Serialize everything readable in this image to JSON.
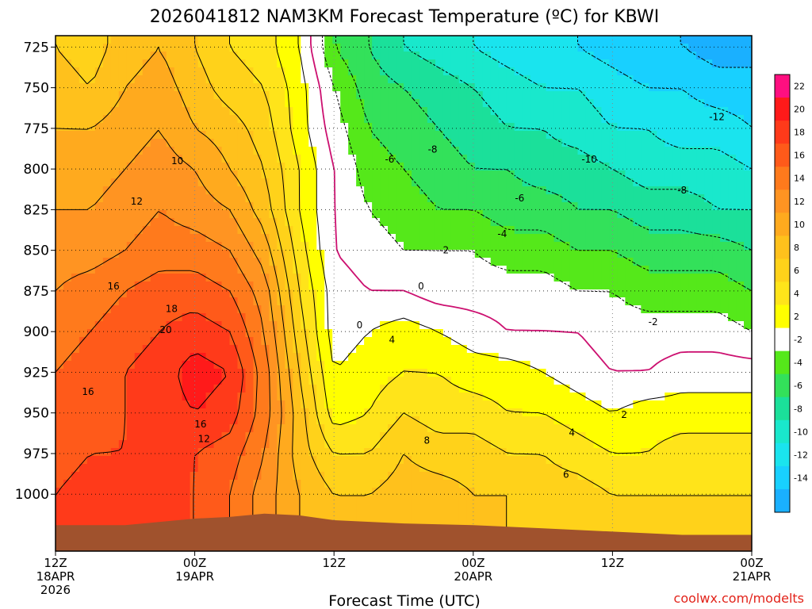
{
  "chart_data": {
    "type": "heatmap",
    "title": "2026041812 NAM3KM Forecast Temperature (ºC) for KBWI",
    "xlabel": "Forecast Time (UTC)",
    "ylabel": "",
    "credit": "coolwx.com/modelts",
    "y_axis": {
      "scale": "pressure (mb), inverted",
      "ylim": [
        1035,
        718
      ],
      "ticks": [
        "725",
        "750",
        "775",
        "800",
        "825",
        "850",
        "875",
        "900",
        "925",
        "950",
        "975",
        "1000"
      ]
    },
    "x_axis": {
      "xlim_hours": [
        0,
        60
      ],
      "ticks": [
        {
          "hour": 0,
          "lines": [
            "12Z",
            "18APR",
            "2026"
          ]
        },
        {
          "hour": 12,
          "lines": [
            "00Z",
            "19APR"
          ]
        },
        {
          "hour": 24,
          "lines": [
            "12Z"
          ]
        },
        {
          "hour": 36,
          "lines": [
            "00Z",
            "20APR"
          ]
        },
        {
          "hour": 48,
          "lines": [
            "12Z"
          ]
        },
        {
          "hour": 60,
          "lines": [
            "00Z",
            "21APR"
          ]
        }
      ]
    },
    "grid": true,
    "colorbar": {
      "placement": "right",
      "levels": [
        {
          "label": "22",
          "color": "#ff0f80"
        },
        {
          "label": "20",
          "color": "#ff1a1a"
        },
        {
          "label": "18",
          "color": "#ff3a1a"
        },
        {
          "label": "16",
          "color": "#ff5a1a"
        },
        {
          "label": "14",
          "color": "#ff7a1c"
        },
        {
          "label": "12",
          "color": "#ff9422"
        },
        {
          "label": "10",
          "color": "#ffaa1e"
        },
        {
          "label": "8",
          "color": "#ffc11c"
        },
        {
          "label": "6",
          "color": "#ffd21a"
        },
        {
          "label": "4",
          "color": "#ffe41a"
        },
        {
          "label": "2",
          "color": "#ffff00"
        },
        {
          "label": "-2",
          "color": "#ffffff"
        },
        {
          "label": "-4",
          "color": "#55e81a"
        },
        {
          "label": "-6",
          "color": "#33e15a"
        },
        {
          "label": "-8",
          "color": "#1be09a"
        },
        {
          "label": "-10",
          "color": "#19e8cc"
        },
        {
          "label": "-12",
          "color": "#1ae4ee"
        },
        {
          "label": "-14",
          "color": "#18d0ff"
        },
        {
          "label": "",
          "color": "#1ab0ff"
        }
      ]
    },
    "freezing_line_color": "#cc1070",
    "terrain_color": "#a0522d",
    "field": {
      "description": "temperature °C; columns by forecast hour",
      "hours": [
        0,
        3,
        6,
        9,
        12,
        15,
        18,
        21,
        24,
        27,
        30,
        33,
        36,
        39,
        42,
        45,
        48,
        51,
        54,
        57,
        60
      ],
      "pressures": [
        725,
        750,
        775,
        800,
        825,
        850,
        875,
        900,
        925,
        950,
        975,
        1000
      ],
      "values": [
        [
          8,
          7,
          9,
          10,
          8,
          6,
          5,
          2,
          -4,
          -6,
          -8,
          -9,
          -10,
          -11,
          -12,
          -12,
          -13,
          -14,
          -14,
          -15,
          -15
        ],
        [
          9,
          8,
          10,
          11,
          9,
          7,
          6,
          3,
          -2,
          -5,
          -6,
          -7,
          -8,
          -9,
          -10,
          -10,
          -11,
          -12,
          -12,
          -13,
          -13
        ],
        [
          10,
          10,
          11,
          12,
          10,
          9,
          7,
          3,
          -1,
          -4,
          -5,
          -6,
          -7,
          -8,
          -8,
          -9,
          -10,
          -10,
          -11,
          -11,
          -12
        ],
        [
          11,
          11,
          12,
          13,
          12,
          10,
          8,
          4,
          0,
          -3,
          -4,
          -5,
          -6,
          -6,
          -7,
          -7,
          -8,
          -9,
          -9,
          -9,
          -10
        ],
        [
          12,
          12,
          13,
          14,
          13,
          12,
          9,
          4,
          0,
          -2,
          -3,
          -4,
          -4,
          -5,
          -5,
          -6,
          -6,
          -7,
          -7,
          -8,
          -8
        ],
        [
          13,
          13,
          14,
          15,
          15,
          14,
          11,
          5,
          0,
          -1,
          -2,
          -2,
          -2,
          -3,
          -3,
          -4,
          -4,
          -5,
          -5,
          -5,
          -6
        ],
        [
          14,
          15,
          16,
          17,
          17,
          16,
          13,
          6,
          1,
          0,
          0,
          -1,
          -1,
          -1,
          -1,
          -2,
          -2,
          -3,
          -3,
          -3,
          -4
        ],
        [
          15,
          16,
          17,
          18,
          19,
          18,
          14,
          7,
          1,
          2,
          3,
          2,
          1,
          0,
          0,
          0,
          -1,
          -1,
          -1,
          -1,
          -2
        ],
        [
          16,
          17,
          18,
          19,
          21,
          20,
          15,
          8,
          2,
          3,
          4,
          4,
          3,
          3,
          2,
          1,
          0,
          0,
          1,
          1,
          1
        ],
        [
          17,
          17,
          18,
          19,
          20,
          19,
          15,
          9,
          3,
          4,
          6,
          5,
          5,
          4,
          4,
          3,
          2,
          3,
          3,
          3,
          3
        ],
        [
          17,
          18,
          18,
          19,
          18,
          17,
          14,
          9,
          6,
          6,
          8,
          7,
          7,
          6,
          6,
          5,
          4,
          4,
          5,
          5,
          5
        ],
        [
          18,
          19,
          19,
          19,
          18,
          16,
          13,
          10,
          8,
          8,
          9,
          9,
          8,
          8,
          7,
          7,
          6,
          6,
          6,
          6,
          6
        ]
      ]
    },
    "contour_labels": [
      {
        "text": "10",
        "hour": 10.5,
        "pressure": 795
      },
      {
        "text": "12",
        "hour": 7.0,
        "pressure": 820
      },
      {
        "text": "16",
        "hour": 5.0,
        "pressure": 872
      },
      {
        "text": "18",
        "hour": 10.0,
        "pressure": 886
      },
      {
        "text": "20",
        "hour": 9.5,
        "pressure": 899
      },
      {
        "text": "16",
        "hour": 2.8,
        "pressure": 937
      },
      {
        "text": "16",
        "hour": 12.5,
        "pressure": 957
      },
      {
        "text": "12",
        "hour": 12.8,
        "pressure": 966
      },
      {
        "text": "-6",
        "hour": 28.8,
        "pressure": 794
      },
      {
        "text": "-8",
        "hour": 32.5,
        "pressure": 788
      },
      {
        "text": "-10",
        "hour": 46.0,
        "pressure": 794
      },
      {
        "text": "-12",
        "hour": 57.0,
        "pressure": 768
      },
      {
        "text": "-6",
        "hour": 40.0,
        "pressure": 818
      },
      {
        "text": "-8",
        "hour": 54.0,
        "pressure": 813
      },
      {
        "text": "-4",
        "hour": 38.5,
        "pressure": 840
      },
      {
        "text": "-2",
        "hour": 33.5,
        "pressure": 850
      },
      {
        "text": "0",
        "hour": 31.5,
        "pressure": 872
      },
      {
        "text": "0",
        "hour": 26.2,
        "pressure": 896
      },
      {
        "text": "4",
        "hour": 29.0,
        "pressure": 905
      },
      {
        "text": "-2",
        "hour": 51.5,
        "pressure": 894
      },
      {
        "text": "2",
        "hour": 49.0,
        "pressure": 951
      },
      {
        "text": "4",
        "hour": 44.5,
        "pressure": 962
      },
      {
        "text": "8",
        "hour": 32.0,
        "pressure": 967
      },
      {
        "text": "6",
        "hour": 44.0,
        "pressure": 988
      }
    ]
  }
}
